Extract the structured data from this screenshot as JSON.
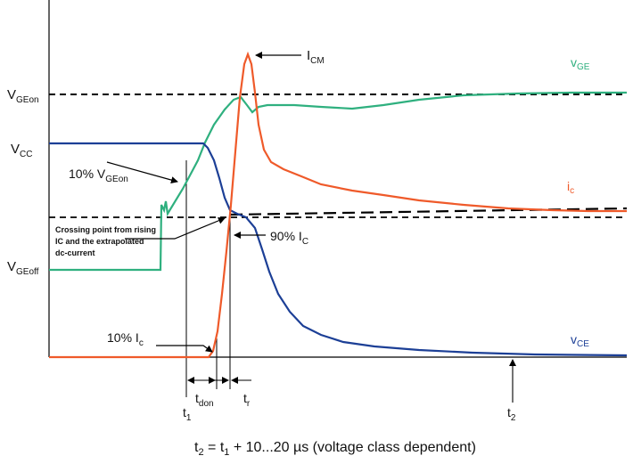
{
  "labels": {
    "vgeon_main": "V",
    "vgeon_sub": "GEon",
    "vcc_main": "V",
    "vcc_sub": "CC",
    "vgeoff_main": "V",
    "vgeoff_sub": "GEoff",
    "icm_main": "I",
    "icm_sub": "CM",
    "vge_main": "v",
    "vge_sub": "GE",
    "ic_main": "i",
    "ic_sub": "c",
    "vce_main": "v",
    "vce_sub": "CE",
    "ten_vgeon_prefix": "10% V",
    "ten_vgeon_sub": "GEon",
    "ninety_ic_prefix": "90% I",
    "ninety_ic_sub": "C",
    "ten_ic_prefix": "10% I",
    "ten_ic_sub": "c",
    "crossing_line1": "Crossing point from rising",
    "crossing_line2": "IC and the extrapolated",
    "crossing_line3": "dc-current",
    "tdon_main": "t",
    "tdon_sub": "don",
    "tr_main": "t",
    "tr_sub": "r",
    "t1_main": "t",
    "t1_sub": "1",
    "t2_main": "t",
    "t2_sub": "2",
    "formula_t2": "t",
    "formula_t2_sub": "2",
    "formula_eq": " = t",
    "formula_t1_sub": "1",
    "formula_rest": " + 10...20 µs (voltage class dependent)"
  },
  "colors": {
    "vge": "#2fb07f",
    "ic": "#ef5a2a",
    "vce": "#1c3f96",
    "axis": "#000000"
  }
}
